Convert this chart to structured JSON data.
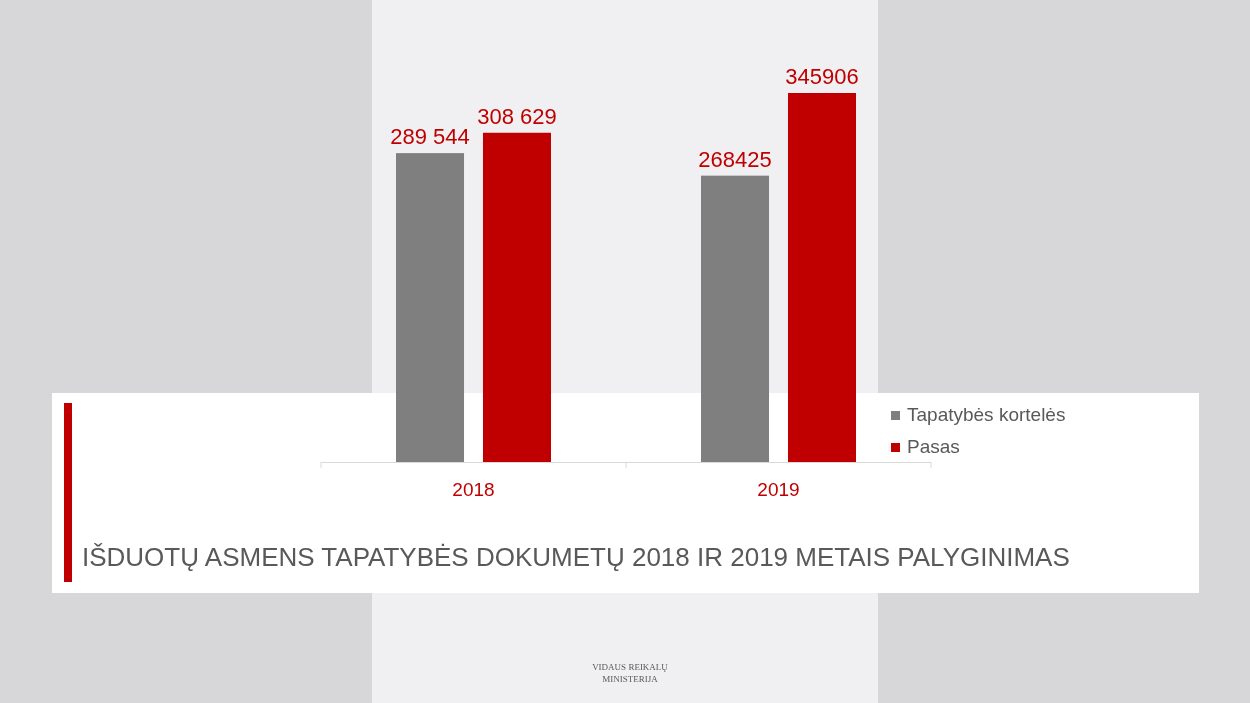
{
  "chart_data": {
    "type": "bar",
    "title": "IŠDUOTŲ ASMENS TAPATYBĖS DOKUMETŲ 2018 IR 2019 METAIS PALYGINIMAS",
    "categories": [
      "2018",
      "2019"
    ],
    "series": [
      {
        "name": "Tapatybės kortelės",
        "color": "#7f7f7f",
        "values": [
          289544,
          268425
        ],
        "value_labels": [
          "289 544",
          "268425"
        ]
      },
      {
        "name": "Pasas",
        "color": "#c00000",
        "values": [
          308629,
          345906
        ],
        "value_labels": [
          "308 629",
          "345906"
        ]
      }
    ],
    "legend": "right",
    "annotations": [
      "VIDAUS REIKALŲ MINISTERIJA"
    ]
  }
}
